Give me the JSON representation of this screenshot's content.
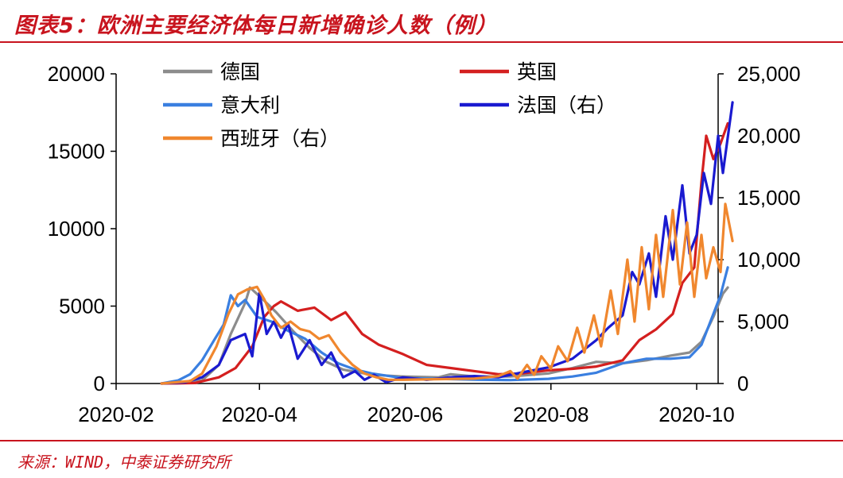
{
  "title": "图表5：欧洲主要经济体每日新增确诊人数（例）",
  "source": "来源：WIND，中泰证券研究所",
  "colors": {
    "accent": "#c8141e",
    "germany": "#8c8c8c",
    "uk": "#d41f1f",
    "italy": "#3a7fe0",
    "france": "#1a1ad0",
    "spain": "#f0872e"
  },
  "chart_data": {
    "type": "line",
    "title": "欧洲主要经济体每日新增确诊人数（例）",
    "x_ticks": [
      "2020-02",
      "2020-04",
      "2020-06",
      "2020-08",
      "2020-10"
    ],
    "y_left": {
      "range": [
        0,
        20000
      ],
      "ticks": [
        "0",
        "5000",
        "10000",
        "15000",
        "20000"
      ]
    },
    "y_right": {
      "range": [
        0,
        25000
      ],
      "ticks": [
        "0",
        "5,000",
        "10,000",
        "15,000",
        "20,000",
        "25,000"
      ]
    },
    "legend": [
      {
        "name": "德国",
        "key": "germany"
      },
      {
        "name": "英国",
        "key": "uk"
      },
      {
        "name": "意大利",
        "key": "italy"
      },
      {
        "name": "法国（右）",
        "key": "france"
      },
      {
        "name": "西班牙（右）",
        "key": "spain"
      }
    ],
    "series": [
      {
        "key": "germany",
        "name": "德国",
        "axis": "left",
        "color": "#8c8c8c",
        "points": [
          [
            "2020-02-20",
            0
          ],
          [
            "2020-03-01",
            30
          ],
          [
            "2020-03-08",
            200
          ],
          [
            "2020-03-15",
            1200
          ],
          [
            "2020-03-20",
            3200
          ],
          [
            "2020-03-26",
            5200
          ],
          [
            "2020-03-28",
            6200
          ],
          [
            "2020-04-02",
            5500
          ],
          [
            "2020-04-08",
            4600
          ],
          [
            "2020-04-15",
            3400
          ],
          [
            "2020-04-22",
            2300
          ],
          [
            "2020-04-29",
            1400
          ],
          [
            "2020-05-06",
            900
          ],
          [
            "2020-05-13",
            700
          ],
          [
            "2020-05-20",
            550
          ],
          [
            "2020-05-31",
            450
          ],
          [
            "2020-06-15",
            400
          ],
          [
            "2020-06-20",
            600
          ],
          [
            "2020-06-30",
            450
          ],
          [
            "2020-07-15",
            450
          ],
          [
            "2020-07-31",
            650
          ],
          [
            "2020-08-10",
            1000
          ],
          [
            "2020-08-20",
            1400
          ],
          [
            "2020-08-31",
            1300
          ],
          [
            "2020-09-10",
            1500
          ],
          [
            "2020-09-20",
            1800
          ],
          [
            "2020-09-28",
            2000
          ],
          [
            "2020-10-03",
            2700
          ],
          [
            "2020-10-08",
            4300
          ],
          [
            "2020-10-12",
            5800
          ],
          [
            "2020-10-14",
            6200
          ]
        ]
      },
      {
        "key": "uk",
        "name": "英国",
        "axis": "left",
        "color": "#d41f1f",
        "points": [
          [
            "2020-02-20",
            0
          ],
          [
            "2020-03-05",
            30
          ],
          [
            "2020-03-15",
            400
          ],
          [
            "2020-03-22",
            1000
          ],
          [
            "2020-03-29",
            2400
          ],
          [
            "2020-04-03",
            4300
          ],
          [
            "2020-04-07",
            5000
          ],
          [
            "2020-04-10",
            5300
          ],
          [
            "2020-04-17",
            4700
          ],
          [
            "2020-04-24",
            4900
          ],
          [
            "2020-05-01",
            4100
          ],
          [
            "2020-05-07",
            4600
          ],
          [
            "2020-05-14",
            3200
          ],
          [
            "2020-05-21",
            2500
          ],
          [
            "2020-05-31",
            1900
          ],
          [
            "2020-06-10",
            1200
          ],
          [
            "2020-06-20",
            1000
          ],
          [
            "2020-06-30",
            800
          ],
          [
            "2020-07-10",
            600
          ],
          [
            "2020-07-20",
            650
          ],
          [
            "2020-07-31",
            850
          ],
          [
            "2020-08-10",
            950
          ],
          [
            "2020-08-20",
            1100
          ],
          [
            "2020-08-31",
            1500
          ],
          [
            "2020-09-07",
            2800
          ],
          [
            "2020-09-14",
            3500
          ],
          [
            "2020-09-21",
            4500
          ],
          [
            "2020-09-25",
            6500
          ],
          [
            "2020-09-30",
            7500
          ],
          [
            "2020-10-03",
            13000
          ],
          [
            "2020-10-05",
            16000
          ],
          [
            "2020-10-08",
            14500
          ],
          [
            "2020-10-11",
            15500
          ],
          [
            "2020-10-14",
            16800
          ]
        ]
      },
      {
        "key": "italy",
        "name": "意大利",
        "axis": "left",
        "color": "#3a7fe0",
        "points": [
          [
            "2020-02-20",
            0
          ],
          [
            "2020-02-27",
            200
          ],
          [
            "2020-03-03",
            600
          ],
          [
            "2020-03-08",
            1500
          ],
          [
            "2020-03-13",
            2800
          ],
          [
            "2020-03-17",
            3800
          ],
          [
            "2020-03-20",
            5700
          ],
          [
            "2020-03-23",
            5000
          ],
          [
            "2020-03-26",
            5400
          ],
          [
            "2020-03-31",
            4300
          ],
          [
            "2020-04-06",
            4000
          ],
          [
            "2020-04-13",
            3400
          ],
          [
            "2020-04-20",
            2900
          ],
          [
            "2020-04-27",
            2000
          ],
          [
            "2020-05-04",
            1300
          ],
          [
            "2020-05-11",
            900
          ],
          [
            "2020-05-18",
            650
          ],
          [
            "2020-05-31",
            350
          ],
          [
            "2020-06-15",
            300
          ],
          [
            "2020-06-30",
            250
          ],
          [
            "2020-07-15",
            220
          ],
          [
            "2020-07-31",
            300
          ],
          [
            "2020-08-10",
            450
          ],
          [
            "2020-08-20",
            700
          ],
          [
            "2020-08-31",
            1300
          ],
          [
            "2020-09-10",
            1600
          ],
          [
            "2020-09-20",
            1600
          ],
          [
            "2020-09-28",
            1700
          ],
          [
            "2020-10-03",
            2500
          ],
          [
            "2020-10-08",
            4500
          ],
          [
            "2020-10-11",
            5700
          ],
          [
            "2020-10-14",
            7500
          ]
        ]
      },
      {
        "key": "france",
        "name": "法国",
        "axis": "right",
        "color": "#1a1ad0",
        "points": [
          [
            "2020-02-20",
            0
          ],
          [
            "2020-03-01",
            100
          ],
          [
            "2020-03-08",
            500
          ],
          [
            "2020-03-15",
            1500
          ],
          [
            "2020-03-20",
            3500
          ],
          [
            "2020-03-26",
            4000
          ],
          [
            "2020-03-29",
            2200
          ],
          [
            "2020-04-01",
            7300
          ],
          [
            "2020-04-04",
            4000
          ],
          [
            "2020-04-07",
            5000
          ],
          [
            "2020-04-10",
            3700
          ],
          [
            "2020-04-13",
            4800
          ],
          [
            "2020-04-17",
            2000
          ],
          [
            "2020-04-22",
            3500
          ],
          [
            "2020-04-27",
            1500
          ],
          [
            "2020-05-01",
            2500
          ],
          [
            "2020-05-06",
            500
          ],
          [
            "2020-05-11",
            1000
          ],
          [
            "2020-05-15",
            300
          ],
          [
            "2020-05-19",
            700
          ],
          [
            "2020-05-24",
            100
          ],
          [
            "2020-05-31",
            500
          ],
          [
            "2020-06-10",
            300
          ],
          [
            "2020-06-20",
            500
          ],
          [
            "2020-06-30",
            600
          ],
          [
            "2020-07-10",
            500
          ],
          [
            "2020-07-20",
            900
          ],
          [
            "2020-07-31",
            1300
          ],
          [
            "2020-08-10",
            2000
          ],
          [
            "2020-08-20",
            3500
          ],
          [
            "2020-08-25",
            4500
          ],
          [
            "2020-08-31",
            5500
          ],
          [
            "2020-09-04",
            9000
          ],
          [
            "2020-09-07",
            8000
          ],
          [
            "2020-09-11",
            10500
          ],
          [
            "2020-09-14",
            7000
          ],
          [
            "2020-09-18",
            13500
          ],
          [
            "2020-09-21",
            10000
          ],
          [
            "2020-09-25",
            16000
          ],
          [
            "2020-09-28",
            10500
          ],
          [
            "2020-10-01",
            12000
          ],
          [
            "2020-10-04",
            17000
          ],
          [
            "2020-10-07",
            14500
          ],
          [
            "2020-10-10",
            20000
          ],
          [
            "2020-10-12",
            17000
          ],
          [
            "2020-10-16",
            22700
          ]
        ]
      },
      {
        "key": "spain",
        "name": "西班牙",
        "axis": "right",
        "color": "#f0872e",
        "points": [
          [
            "2020-02-20",
            0
          ],
          [
            "2020-03-03",
            200
          ],
          [
            "2020-03-08",
            800
          ],
          [
            "2020-03-14",
            3000
          ],
          [
            "2020-03-19",
            5600
          ],
          [
            "2020-03-23",
            7200
          ],
          [
            "2020-03-27",
            7600
          ],
          [
            "2020-03-31",
            7800
          ],
          [
            "2020-04-03",
            6800
          ],
          [
            "2020-04-06",
            5500
          ],
          [
            "2020-04-10",
            4500
          ],
          [
            "2020-04-14",
            5000
          ],
          [
            "2020-04-18",
            4400
          ],
          [
            "2020-04-22",
            4200
          ],
          [
            "2020-04-26",
            3600
          ],
          [
            "2020-04-30",
            3900
          ],
          [
            "2020-05-05",
            2500
          ],
          [
            "2020-05-10",
            1500
          ],
          [
            "2020-05-15",
            800
          ],
          [
            "2020-05-20",
            500
          ],
          [
            "2020-05-25",
            300
          ],
          [
            "2020-05-31",
            300
          ],
          [
            "2020-06-15",
            350
          ],
          [
            "2020-06-30",
            400
          ],
          [
            "2020-07-10",
            600
          ],
          [
            "2020-07-15",
            1000
          ],
          [
            "2020-07-18",
            400
          ],
          [
            "2020-07-22",
            1500
          ],
          [
            "2020-07-25",
            700
          ],
          [
            "2020-07-28",
            2200
          ],
          [
            "2020-08-01",
            1200
          ],
          [
            "2020-08-04",
            3000
          ],
          [
            "2020-08-08",
            1800
          ],
          [
            "2020-08-12",
            4500
          ],
          [
            "2020-08-15",
            2500
          ],
          [
            "2020-08-19",
            5500
          ],
          [
            "2020-08-22",
            3000
          ],
          [
            "2020-08-26",
            7500
          ],
          [
            "2020-08-29",
            4000
          ],
          [
            "2020-09-02",
            10000
          ],
          [
            "2020-09-05",
            5000
          ],
          [
            "2020-09-08",
            11000
          ],
          [
            "2020-09-11",
            6000
          ],
          [
            "2020-09-14",
            12000
          ],
          [
            "2020-09-17",
            7000
          ],
          [
            "2020-09-21",
            14000
          ],
          [
            "2020-09-24",
            8000
          ],
          [
            "2020-09-27",
            13000
          ],
          [
            "2020-09-30",
            7000
          ],
          [
            "2020-10-03",
            12000
          ],
          [
            "2020-10-05",
            8500
          ],
          [
            "2020-10-08",
            11000
          ],
          [
            "2020-10-11",
            9000
          ],
          [
            "2020-10-13",
            14500
          ],
          [
            "2020-10-16",
            11500
          ]
        ]
      }
    ]
  }
}
